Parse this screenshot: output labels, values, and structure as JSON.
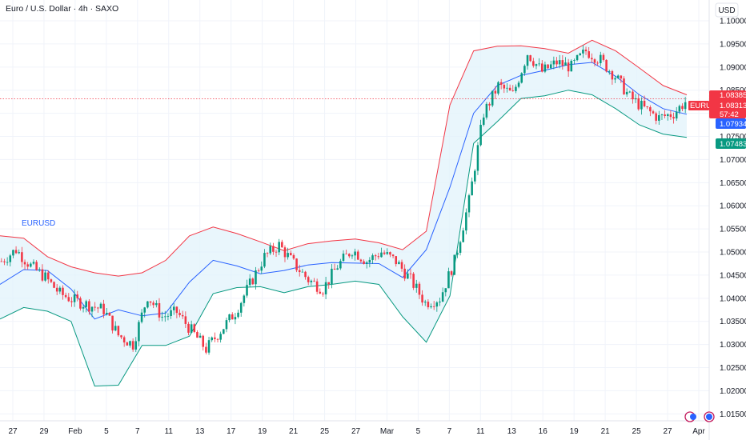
{
  "header": {
    "title": "Euro / U.S. Dollar · 4h · SAXO",
    "currency_button": "USD"
  },
  "colors": {
    "up": "#089981",
    "down": "#f23645",
    "band_upper": "#f23645",
    "band_lower": "#089981",
    "basis": "#2962ff",
    "band_fill": "#e1f3fb",
    "price_badge": "#f23645",
    "basis_badge": "#2962ff",
    "lower_badge": "#089981",
    "symbol_label": "#2962ff"
  },
  "chart_data": {
    "type": "candlestick",
    "symbol": "EURUSD",
    "timeframe": "4h",
    "ylim": [
      1.0135,
      1.1045
    ],
    "y_ticks": [
      "1.10000",
      "1.09500",
      "1.09000",
      "1.08500",
      "1.08000",
      "1.07500",
      "1.07000",
      "1.06500",
      "1.06000",
      "1.05500",
      "1.05000",
      "1.04500",
      "1.04000",
      "1.03500",
      "1.03000",
      "1.02500",
      "1.02000",
      "1.01500"
    ],
    "x_ticks": [
      "27",
      "29",
      "Feb",
      "5",
      "7",
      "11",
      "13",
      "17",
      "19",
      "21",
      "25",
      "27",
      "Mar",
      "5",
      "7",
      "11",
      "13",
      "16",
      "19",
      "21",
      "25",
      "27",
      "Apr"
    ],
    "series_label": "EURUSD",
    "bollinger_bands": {
      "upper": [
        1.0535,
        1.053,
        1.049,
        1.0468,
        1.0455,
        1.0448,
        1.0455,
        1.0482,
        1.0535,
        1.0554,
        1.054,
        1.0522,
        1.0503,
        1.0518,
        1.0524,
        1.0528,
        1.052,
        1.0505,
        1.0545,
        1.0818,
        1.0935,
        1.0945,
        1.0946,
        1.094,
        1.093,
        1.0958,
        1.0935,
        1.0898,
        1.086,
        1.084
      ],
      "basis": [
        1.043,
        1.0462,
        1.046,
        1.042,
        1.0355,
        1.0375,
        1.0362,
        1.0368,
        1.0435,
        1.0482,
        1.047,
        1.0453,
        1.046,
        1.0472,
        1.0477,
        1.0476,
        1.0475,
        1.0445,
        1.0505,
        1.064,
        1.08,
        1.086,
        1.0882,
        1.0893,
        1.0905,
        1.091,
        1.088,
        1.084,
        1.081,
        1.0798
      ],
      "lower": [
        1.0355,
        1.038,
        1.0372,
        1.035,
        1.021,
        1.0212,
        1.0298,
        1.0298,
        1.0318,
        1.041,
        1.0423,
        1.0425,
        1.0412,
        1.0425,
        1.043,
        1.0437,
        1.043,
        1.036,
        1.0305,
        1.0405,
        1.0735,
        1.0782,
        1.0832,
        1.0838,
        1.085,
        1.084,
        1.081,
        1.0775,
        1.0755,
        1.0748
      ]
    },
    "candles_close": [
      1.048,
      1.0505,
      1.047,
      1.0445,
      1.041,
      1.0395,
      1.0385,
      1.0375,
      1.032,
      1.03,
      1.0405,
      1.036,
      1.037,
      1.033,
      1.029,
      1.033,
      1.037,
      1.043,
      1.049,
      1.0515,
      1.0475,
      1.044,
      1.042,
      1.047,
      1.0505,
      1.048,
      1.05,
      1.048,
      1.044,
      1.039,
      1.04,
      1.048,
      1.061,
      1.08,
      1.086,
      1.084,
      1.093,
      1.089,
      1.091,
      1.09,
      1.0935,
      1.0915,
      1.088,
      1.0835,
      1.081,
      1.079,
      1.08,
      1.0831
    ],
    "last_price": "1.08313",
    "price_labels": {
      "upper": "1.08385",
      "current": "1.08313",
      "countdown": "57:42",
      "basis": "1.07934",
      "lower": "1.07483"
    },
    "last_price_value": 1.08313,
    "upper_value": 1.08385,
    "basis_value": 1.07934,
    "lower_value": 1.07483
  }
}
